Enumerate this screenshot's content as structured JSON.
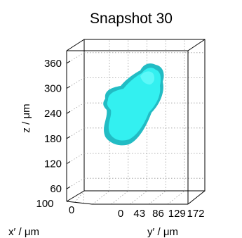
{
  "chart_data": {
    "type": "3d-surface",
    "title": "Snapshot 30",
    "xlabel": "x′ / μm",
    "ylabel": "y′ / μm",
    "zlabel": "z / μm",
    "x_ticks": [
      "0",
      "100"
    ],
    "y_ticks": [
      "0",
      "43",
      "86",
      "129",
      "172"
    ],
    "z_ticks": [
      "60",
      "120",
      "180",
      "240",
      "300",
      "360"
    ],
    "xlim": [
      0,
      100
    ],
    "ylim": [
      0,
      172
    ],
    "zlim": [
      30,
      390
    ],
    "grid": true,
    "surface_color": "#33f0f0",
    "shadow_color": "#22bcc4",
    "highlight_color": "#6ffbfb"
  }
}
